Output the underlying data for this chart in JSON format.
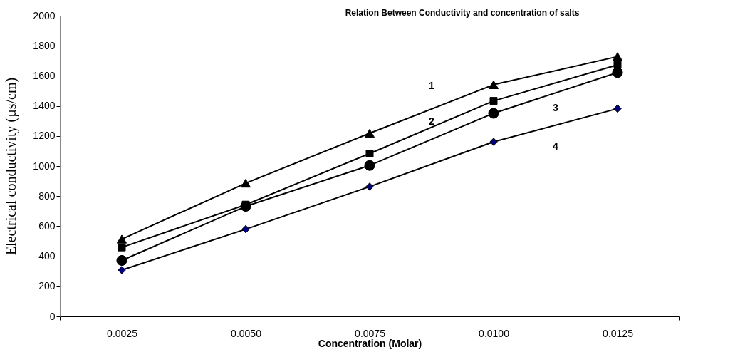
{
  "chart_data": {
    "type": "line",
    "title": "Relation Between Conductivity and concentration of salts",
    "xlabel": "Concentration (Molar)",
    "ylabel": "Electrical conductivity (µs/cm)",
    "categories": [
      "0.0025",
      "0.0050",
      "0.0075",
      "0.0100",
      "0.0125"
    ],
    "series": [
      {
        "name": "1",
        "color": "#000000",
        "marker": "triangle",
        "values": [
          514,
          886,
          1218,
          1541,
          1728
        ]
      },
      {
        "name": "2",
        "color": "#000000",
        "marker": "square",
        "values": [
          459,
          743,
          1083,
          1433,
          1673
        ]
      },
      {
        "name": "3",
        "color": "#000000",
        "marker": "circle",
        "values": [
          372,
          732,
          1004,
          1351,
          1622
        ]
      },
      {
        "name": "4",
        "color": "#000080",
        "marker": "diamond",
        "values": [
          308,
          580,
          863,
          1161,
          1382
        ]
      }
    ],
    "ylim": [
      0,
      2000
    ],
    "yticks": [
      0,
      200,
      400,
      600,
      800,
      1000,
      1200,
      1400,
      1600,
      1800,
      2000
    ],
    "grid": false,
    "line_style": "solid"
  }
}
